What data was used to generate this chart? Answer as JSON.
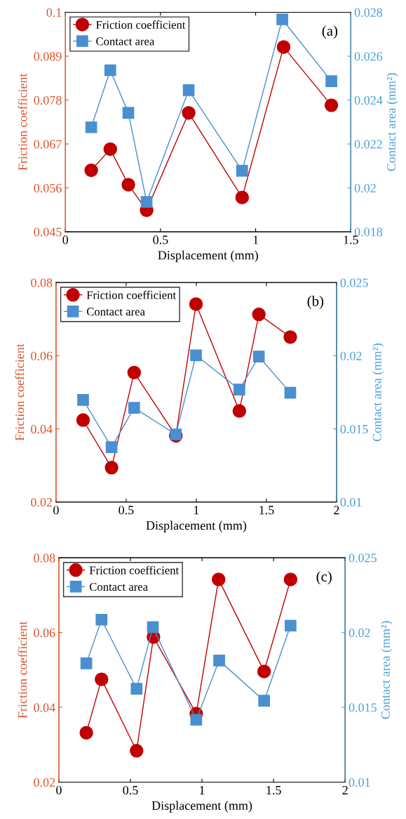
{
  "chart_data": [
    {
      "type": "line",
      "annotations": [
        "(a)"
      ],
      "xlabel": "Displacement (mm)",
      "ylabel": "Friction coefficient",
      "y2label": "Contact area (mm²)",
      "xlim": [
        0,
        1.5
      ],
      "xticks": [
        0,
        0.5,
        1,
        1.5
      ],
      "ylim": [
        0.045,
        0.1
      ],
      "yticks": [
        0.045,
        0.056,
        0.067,
        0.078,
        0.089,
        0.1
      ],
      "y2lim": [
        0.018,
        0.028
      ],
      "y2ticks": [
        0.018,
        0.02,
        0.022,
        0.024,
        0.026,
        0.028
      ],
      "legend": "top left",
      "grid": false,
      "series": [
        {
          "name": "Friction coefficient",
          "color": "#c00000",
          "marker": "circle",
          "x": [
            0.136,
            0.236,
            0.331,
            0.427,
            0.648,
            0.929,
            1.147,
            1.398
          ],
          "values": [
            0.0604,
            0.0657,
            0.0568,
            0.0504,
            0.0748,
            0.0536,
            0.0913,
            0.0767
          ]
        },
        {
          "name": "Contact area",
          "color": "#4a8fd0",
          "marker": "square",
          "axis": "y2",
          "x": [
            0.136,
            0.236,
            0.331,
            0.427,
            0.648,
            0.929,
            1.14,
            1.398
          ],
          "values": [
            0.02276,
            0.02536,
            0.02342,
            0.01936,
            0.02445,
            0.02078,
            0.02768,
            0.02486
          ]
        }
      ]
    },
    {
      "type": "line",
      "annotations": [
        "(b)"
      ],
      "xlabel": "Displacement (mm)",
      "ylabel": "Friction coefficient",
      "y2label": "Contact area (mm²)",
      "xlim": [
        0,
        2
      ],
      "xticks": [
        0,
        0.5,
        1,
        1.5,
        2
      ],
      "ylim": [
        0.02,
        0.08
      ],
      "yticks": [
        0.02,
        0.04,
        0.06,
        0.08
      ],
      "y2lim": [
        0.01,
        0.025
      ],
      "y2ticks": [
        0.01,
        0.015,
        0.02,
        0.025
      ],
      "legend": "top left",
      "grid": false,
      "series": [
        {
          "name": "Friction coefficient",
          "color": "#c00000",
          "marker": "circle",
          "x": [
            0.193,
            0.396,
            0.557,
            0.854,
            0.998,
            1.307,
            1.446,
            1.67
          ],
          "values": [
            0.0424,
            0.0294,
            0.0554,
            0.0381,
            0.0741,
            0.0449,
            0.0713,
            0.0651
          ]
        },
        {
          "name": "Contact area",
          "color": "#4a8fd0",
          "marker": "square",
          "axis": "y2",
          "x": [
            0.193,
            0.396,
            0.557,
            0.854,
            0.998,
            1.307,
            1.446,
            1.67
          ],
          "values": [
            0.01698,
            0.01375,
            0.01644,
            0.01462,
            0.02003,
            0.01769,
            0.01994,
            0.01747
          ]
        }
      ]
    },
    {
      "type": "line",
      "annotations": [
        "(c)"
      ],
      "xlabel": "Displacement (mm)",
      "ylabel": "Friction coefficient",
      "y2label": "Contact area (mm²)",
      "xlim": [
        0,
        2
      ],
      "xticks": [
        0,
        0.5,
        1,
        1.5,
        2
      ],
      "ylim": [
        0.02,
        0.08
      ],
      "yticks": [
        0.02,
        0.04,
        0.06,
        0.08
      ],
      "y2lim": [
        0.01,
        0.025
      ],
      "y2ticks": [
        0.01,
        0.015,
        0.02,
        0.025
      ],
      "legend": "top left",
      "grid": false,
      "series": [
        {
          "name": "Friction coefficient",
          "color": "#c00000",
          "marker": "circle",
          "x": [
            0.192,
            0.298,
            0.543,
            0.661,
            0.96,
            1.116,
            1.434,
            1.619
          ],
          "values": [
            0.0332,
            0.0475,
            0.0284,
            0.0588,
            0.0383,
            0.0742,
            0.0496,
            0.0742
          ]
        },
        {
          "name": "Contact area",
          "color": "#4a8fd0",
          "marker": "square",
          "axis": "y2",
          "x": [
            0.192,
            0.298,
            0.543,
            0.657,
            0.96,
            1.12,
            1.434,
            1.619
          ],
          "values": [
            0.01794,
            0.02086,
            0.01624,
            0.02036,
            0.01417,
            0.01813,
            0.01544,
            0.02046
          ]
        }
      ]
    }
  ]
}
